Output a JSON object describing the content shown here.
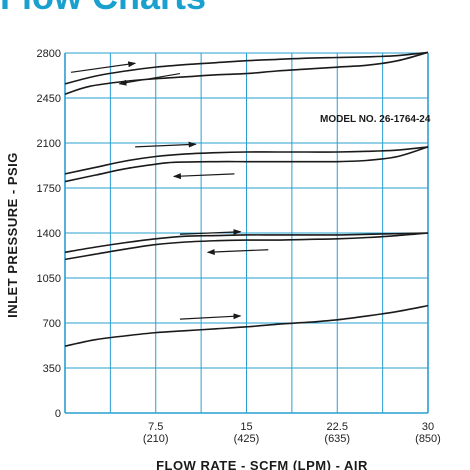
{
  "heading": "Flow Charts",
  "colors": {
    "heading": "#1aa0cf",
    "grid": "#2a9fd0",
    "curve": "#1a1a1a",
    "text": "#1a1a1a"
  },
  "chart_data": {
    "type": "line",
    "title": "",
    "annotation": "MODEL NO. 26-1764-24",
    "xlabel": "FLOW RATE - SCFM (LPM) - AIR",
    "ylabel": "INLET PRESSURE - PSIG",
    "xlim": [
      0,
      30
    ],
    "ylim": [
      0,
      2800
    ],
    "grid": true,
    "x_ticks": [
      {
        "value": 7.5,
        "label": "7.5",
        "sublabel": "(210)"
      },
      {
        "value": 15,
        "label": "15",
        "sublabel": "(425)"
      },
      {
        "value": 22.5,
        "label": "22.5",
        "sublabel": "(635)"
      },
      {
        "value": 30,
        "label": "30",
        "sublabel": "(850)"
      }
    ],
    "y_ticks": [
      {
        "value": 0,
        "label": "0"
      },
      {
        "value": 350,
        "label": "350"
      },
      {
        "value": 700,
        "label": "700"
      },
      {
        "value": 1050,
        "label": "1050"
      },
      {
        "value": 1400,
        "label": "1400"
      },
      {
        "value": 1750,
        "label": "1750"
      },
      {
        "value": 2100,
        "label": "2100"
      },
      {
        "value": 2450,
        "label": "2450"
      },
      {
        "value": 2800,
        "label": "2800"
      }
    ],
    "x_gridlines": [
      0,
      3.75,
      7.5,
      11.25,
      15,
      18.75,
      22.5,
      26.25,
      30
    ],
    "series": [
      {
        "values": [
          [
            0,
            2560
          ],
          [
            2.5,
            2620
          ],
          [
            5,
            2660
          ],
          [
            7.5,
            2690
          ],
          [
            10,
            2710
          ],
          [
            12.5,
            2725
          ],
          [
            15,
            2740
          ],
          [
            17.5,
            2750
          ],
          [
            20,
            2760
          ],
          [
            22.5,
            2765
          ],
          [
            25,
            2770
          ],
          [
            27.5,
            2780
          ],
          [
            30,
            2805
          ]
        ]
      },
      {
        "values": [
          [
            0,
            2480
          ],
          [
            2,
            2540
          ],
          [
            5,
            2580
          ],
          [
            7.5,
            2600
          ],
          [
            10,
            2615
          ],
          [
            12.5,
            2630
          ],
          [
            15,
            2640
          ],
          [
            17.5,
            2660
          ],
          [
            20,
            2675
          ],
          [
            22.5,
            2690
          ],
          [
            25,
            2705
          ],
          [
            27.5,
            2740
          ],
          [
            30,
            2805
          ]
        ]
      },
      {
        "values": [
          [
            0,
            1860
          ],
          [
            2.5,
            1910
          ],
          [
            5,
            1960
          ],
          [
            7.5,
            1995
          ],
          [
            10,
            2015
          ],
          [
            12.5,
            2025
          ],
          [
            15,
            2030
          ],
          [
            17.5,
            2030
          ],
          [
            20,
            2030
          ],
          [
            22.5,
            2030
          ],
          [
            25,
            2035
          ],
          [
            27.5,
            2045
          ],
          [
            30,
            2070
          ]
        ]
      },
      {
        "values": [
          [
            0,
            1800
          ],
          [
            2.5,
            1850
          ],
          [
            5,
            1900
          ],
          [
            7.5,
            1935
          ],
          [
            9,
            1950
          ],
          [
            12.5,
            1955
          ],
          [
            15,
            1955
          ],
          [
            17.5,
            1955
          ],
          [
            20,
            1955
          ],
          [
            22.5,
            1955
          ],
          [
            25,
            1965
          ],
          [
            27.5,
            1995
          ],
          [
            30,
            2070
          ]
        ]
      },
      {
        "values": [
          [
            0,
            1250
          ],
          [
            2.5,
            1290
          ],
          [
            5,
            1325
          ],
          [
            7.5,
            1355
          ],
          [
            10,
            1375
          ],
          [
            12.5,
            1380
          ],
          [
            15,
            1385
          ],
          [
            17.5,
            1385
          ],
          [
            20,
            1385
          ],
          [
            22.5,
            1385
          ],
          [
            25,
            1390
          ],
          [
            27.5,
            1395
          ],
          [
            30,
            1400
          ]
        ]
      },
      {
        "values": [
          [
            0,
            1195
          ],
          [
            2.5,
            1235
          ],
          [
            5,
            1275
          ],
          [
            7.5,
            1310
          ],
          [
            10,
            1330
          ],
          [
            12.5,
            1340
          ],
          [
            15,
            1345
          ],
          [
            17.5,
            1345
          ],
          [
            20,
            1350
          ],
          [
            22.5,
            1355
          ],
          [
            25,
            1365
          ],
          [
            27.5,
            1380
          ],
          [
            30,
            1400
          ]
        ]
      },
      {
        "values": [
          [
            0,
            520
          ],
          [
            2.5,
            570
          ],
          [
            5,
            600
          ],
          [
            7.5,
            625
          ],
          [
            10,
            640
          ],
          [
            12.5,
            655
          ],
          [
            15,
            670
          ],
          [
            17.5,
            690
          ],
          [
            20,
            705
          ],
          [
            22.5,
            725
          ],
          [
            25,
            755
          ],
          [
            27.5,
            790
          ],
          [
            30,
            835
          ]
        ]
      }
    ],
    "arrows": [
      {
        "from": [
          0.5,
          2650
        ],
        "to": [
          5.8,
          2720
        ]
      },
      {
        "from": [
          9.5,
          2640
        ],
        "to": [
          4.5,
          2560
        ]
      },
      {
        "from": [
          5.8,
          2070
        ],
        "to": [
          10.8,
          2090
        ]
      },
      {
        "from": [
          14,
          1860
        ],
        "to": [
          9,
          1840
        ]
      },
      {
        "from": [
          9.5,
          1390
        ],
        "to": [
          14.5,
          1410
        ]
      },
      {
        "from": [
          16.8,
          1270
        ],
        "to": [
          11.8,
          1250
        ]
      },
      {
        "from": [
          9.5,
          730
        ],
        "to": [
          14.5,
          755
        ]
      }
    ]
  }
}
